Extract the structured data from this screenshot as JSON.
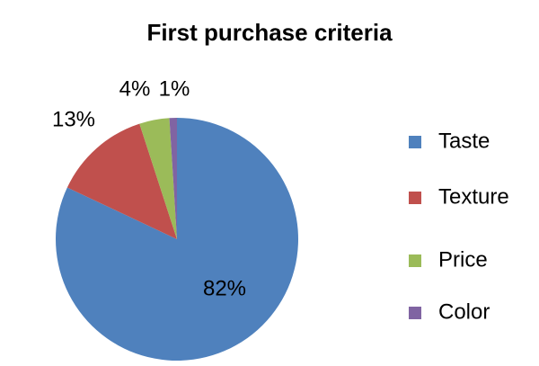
{
  "chart_data": {
    "type": "pie",
    "title": "First purchase criteria",
    "categories": [
      "Taste",
      "Texture",
      "Price",
      "Color"
    ],
    "values": [
      82,
      13,
      4,
      1
    ],
    "value_labels": [
      "82%",
      "13%",
      "4%",
      "1%"
    ],
    "colors": [
      "#4f81bd",
      "#c0504d",
      "#9bbb59",
      "#8064a2"
    ],
    "legend": "right"
  }
}
